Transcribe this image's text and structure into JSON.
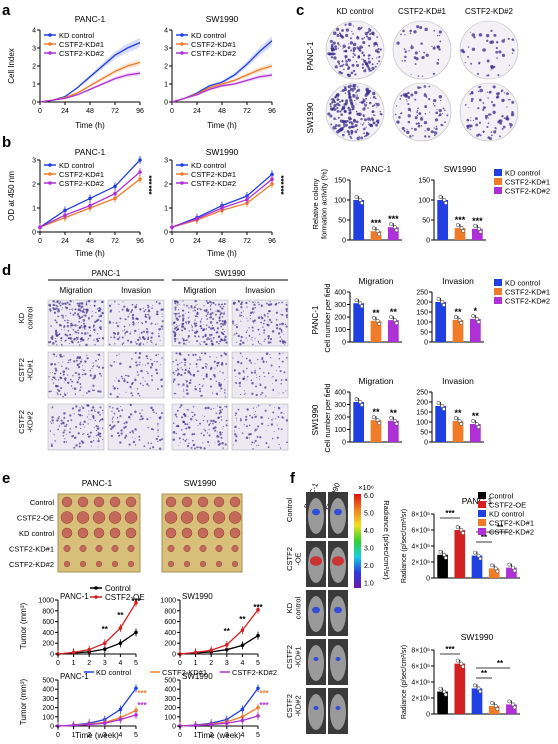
{
  "colors": {
    "blue": "#1f3fe0",
    "orange": "#f07c2a",
    "purple": "#b030d8",
    "black": "#000000",
    "red": "#d42020",
    "plate": "#d8c07a",
    "stain": "#3a2c8a"
  },
  "panel_letters": [
    "a",
    "b",
    "c",
    "d",
    "e",
    "f"
  ],
  "groups": {
    "kd": [
      "KD control",
      "CSTF2-KD#1",
      "CSTF2-KD#2"
    ],
    "oe": [
      "Control",
      "CSTF2-OE"
    ],
    "all": [
      "Control",
      "CSTF2-OE",
      "KD control",
      "CSTF2-KD#1",
      "CSTF2-KD#2"
    ]
  },
  "cells": [
    "PANC-1",
    "SW1990"
  ],
  "panel_a": {
    "ylabel": "Cell Index",
    "xlabel": "Time (h)",
    "xticks": [
      "0",
      "24",
      "48",
      "72",
      "96"
    ],
    "yticks": [
      "0",
      "1",
      "2",
      "3",
      "4"
    ]
  },
  "panel_b": {
    "ylabel": "OD at 450 nm",
    "xlabel": "Time (h)",
    "xticks": [
      "0",
      "24",
      "48",
      "72",
      "96"
    ],
    "yticks": [
      "0",
      "1",
      "2",
      "3"
    ],
    "stars": [
      "***",
      "***"
    ]
  },
  "panel_c": {
    "ylabel": "Relative colony\nformation activity (%)",
    "yticks": [
      "0",
      "50",
      "100",
      "150"
    ],
    "stars": [
      "***",
      "***"
    ]
  },
  "panel_d": {
    "cols": [
      "Migration",
      "Invasion"
    ],
    "rows": [
      "KD\ncontrol",
      "CSTF2\n-KD#1",
      "CSTF2\n-KD#2"
    ],
    "ylabel": "Cell number per field",
    "charts": [
      {
        "title": "Migration",
        "cell": "PANC-1",
        "yticks": [
          "0",
          "100",
          "200",
          "300",
          "400"
        ],
        "stars": [
          "**",
          "**"
        ]
      },
      {
        "title": "Invasion",
        "cell": "PANC-1",
        "yticks": [
          "0",
          "50",
          "100",
          "150",
          "200",
          "250"
        ],
        "stars": [
          "**",
          "*"
        ]
      },
      {
        "title": "Migration",
        "cell": "SW1990",
        "yticks": [
          "0",
          "100",
          "200",
          "300",
          "400"
        ],
        "stars": [
          "**",
          "**"
        ]
      },
      {
        "title": "Invasion",
        "cell": "SW1990",
        "yticks": [
          "0",
          "50",
          "100",
          "150",
          "200",
          "250"
        ],
        "stars": [
          "**",
          "**"
        ]
      }
    ]
  },
  "panel_e": {
    "rows": [
      "Control",
      "CSTF2-OE",
      "KD control",
      "CSTF2-KD#1",
      "CSTF2-KD#2"
    ],
    "ylabel": "Tumor (mm³)",
    "xlabel": "Time (week)",
    "xticks": [
      "0",
      "1",
      "2",
      "3",
      "4",
      "5"
    ],
    "top_yticks": [
      "0",
      "200",
      "400",
      "600",
      "800",
      "1000"
    ],
    "bottom_yticks": [
      "0",
      "100",
      "200",
      "300",
      "400",
      "500"
    ],
    "stars_oe": [
      "**",
      "**",
      "***"
    ],
    "stars_kd": [
      "***",
      "***"
    ]
  },
  "panel_f": {
    "cols": [
      "PANC-1",
      "SW1990"
    ],
    "rows": [
      "Control",
      "CSTF2\n-OE",
      "KD\ncontrol",
      "CSTF2\n-KD#1",
      "CSTF2\n-KD#2"
    ],
    "scale_title": "×10⁶",
    "scale_ticks": [
      "6.0",
      "5.0",
      "4.0",
      "3.0",
      "2.0",
      "1.0"
    ],
    "scale_label": "Radiance (p/sec/cm²/sr)",
    "ylabel": "Radiance (p/sec/cm²/sr)",
    "yticks": [
      "0",
      "2×10⁶",
      "4×10⁶",
      "6×10⁶",
      "8×10⁶"
    ],
    "stars": [
      "***",
      "**",
      "**"
    ]
  },
  "chart_data": [
    {
      "type": "line",
      "panel": "a",
      "title": "PANC-1",
      "xlabel": "Time (h)",
      "ylabel": "Cell Index",
      "xlim": [
        0,
        96
      ],
      "ylim": [
        0,
        4
      ],
      "x": [
        0,
        12,
        24,
        36,
        48,
        60,
        72,
        84,
        96
      ],
      "series": [
        {
          "name": "KD control",
          "values": [
            0,
            0.1,
            0.3,
            0.8,
            1.4,
            2.0,
            2.6,
            3.0,
            3.3
          ]
        },
        {
          "name": "CSTF2-KD#1",
          "values": [
            0,
            0.1,
            0.25,
            0.5,
            0.9,
            1.3,
            1.7,
            2.0,
            2.2
          ]
        },
        {
          "name": "CSTF2-KD#2",
          "values": [
            0,
            0.1,
            0.2,
            0.4,
            0.7,
            1.0,
            1.3,
            1.5,
            1.6
          ]
        }
      ]
    },
    {
      "type": "line",
      "panel": "a",
      "title": "SW1990",
      "xlabel": "Time (h)",
      "ylabel": "",
      "xlim": [
        0,
        96
      ],
      "ylim": [
        0,
        4
      ],
      "x": [
        0,
        12,
        24,
        36,
        48,
        60,
        72,
        84,
        96
      ],
      "series": [
        {
          "name": "KD control",
          "values": [
            0,
            0.2,
            0.5,
            0.9,
            1.1,
            1.5,
            2.1,
            2.8,
            3.4
          ]
        },
        {
          "name": "CSTF2-KD#1",
          "values": [
            0,
            0.2,
            0.45,
            0.8,
            1.0,
            1.2,
            1.5,
            1.8,
            2.0
          ]
        },
        {
          "name": "CSTF2-KD#2",
          "values": [
            0,
            0.2,
            0.4,
            0.7,
            0.9,
            1.0,
            1.2,
            1.4,
            1.5
          ]
        }
      ]
    },
    {
      "type": "line",
      "panel": "b",
      "title": "PANC-1",
      "xlabel": "Time (h)",
      "ylabel": "OD at 450 nm",
      "xlim": [
        0,
        96
      ],
      "ylim": [
        0,
        3
      ],
      "x": [
        0,
        24,
        48,
        72,
        96
      ],
      "series": [
        {
          "name": "KD control",
          "values": [
            0.2,
            0.9,
            1.4,
            1.9,
            3.0
          ]
        },
        {
          "name": "CSTF2-KD#1",
          "values": [
            0.2,
            0.6,
            1.0,
            1.4,
            2.2
          ]
        },
        {
          "name": "CSTF2-KD#2",
          "values": [
            0.2,
            0.7,
            1.1,
            1.6,
            2.5
          ]
        }
      ]
    },
    {
      "type": "line",
      "panel": "b",
      "title": "SW1990",
      "xlabel": "Time (h)",
      "ylabel": "",
      "xlim": [
        0,
        96
      ],
      "ylim": [
        0,
        3
      ],
      "x": [
        0,
        24,
        48,
        72,
        96
      ],
      "series": [
        {
          "name": "KD control",
          "values": [
            0.2,
            0.6,
            1.1,
            1.5,
            2.4
          ]
        },
        {
          "name": "CSTF2-KD#1",
          "values": [
            0.2,
            0.5,
            0.9,
            1.2,
            2.0
          ]
        },
        {
          "name": "CSTF2-KD#2",
          "values": [
            0.2,
            0.55,
            1.0,
            1.35,
            2.2
          ]
        }
      ]
    },
    {
      "type": "bar",
      "panel": "c",
      "title": "PANC-1",
      "ylim": [
        0,
        150
      ],
      "categories": [
        "KD control",
        "CSTF2-KD#1",
        "CSTF2-KD#2"
      ],
      "values": [
        100,
        22,
        32
      ]
    },
    {
      "type": "bar",
      "panel": "c",
      "title": "SW1990",
      "ylim": [
        0,
        150
      ],
      "categories": [
        "KD control",
        "CSTF2-KD#1",
        "CSTF2-KD#2"
      ],
      "values": [
        100,
        30,
        28
      ]
    },
    {
      "type": "bar",
      "panel": "d",
      "title": "Migration",
      "cell": "PANC-1",
      "ylim": [
        0,
        400
      ],
      "categories": [
        "KD control",
        "CSTF2-KD#1",
        "CSTF2-KD#2"
      ],
      "values": [
        310,
        170,
        175
      ]
    },
    {
      "type": "bar",
      "panel": "d",
      "title": "Invasion",
      "cell": "PANC-1",
      "ylim": [
        0,
        250
      ],
      "categories": [
        "KD control",
        "CSTF2-KD#1",
        "CSTF2-KD#2"
      ],
      "values": [
        200,
        110,
        115
      ]
    },
    {
      "type": "bar",
      "panel": "d",
      "title": "Migration",
      "cell": "SW1990",
      "ylim": [
        0,
        400
      ],
      "categories": [
        "KD control",
        "CSTF2-KD#1",
        "CSTF2-KD#2"
      ],
      "values": [
        320,
        175,
        170
      ]
    },
    {
      "type": "bar",
      "panel": "d",
      "title": "Invasion",
      "cell": "SW1990",
      "ylim": [
        0,
        250
      ],
      "categories": [
        "KD control",
        "CSTF2-KD#1",
        "CSTF2-KD#2"
      ],
      "values": [
        180,
        105,
        90
      ]
    },
    {
      "type": "line",
      "panel": "e",
      "title": "PANC-1",
      "xlim": [
        0,
        5
      ],
      "ylim": [
        0,
        1000
      ],
      "x": [
        0,
        1,
        2,
        3,
        4,
        5
      ],
      "series": [
        {
          "name": "Control",
          "values": [
            0,
            20,
            40,
            90,
            200,
            400
          ]
        },
        {
          "name": "CSTF2-OE",
          "values": [
            0,
            30,
            80,
            200,
            480,
            950
          ]
        }
      ]
    },
    {
      "type": "line",
      "panel": "e",
      "title": "SW1990",
      "xlim": [
        0,
        5
      ],
      "ylim": [
        0,
        1000
      ],
      "x": [
        0,
        1,
        2,
        3,
        4,
        5
      ],
      "series": [
        {
          "name": "Control",
          "values": [
            0,
            20,
            40,
            80,
            160,
            340
          ]
        },
        {
          "name": "CSTF2-OE",
          "values": [
            0,
            30,
            70,
            170,
            440,
            820
          ]
        }
      ]
    },
    {
      "type": "line",
      "panel": "e",
      "title": "PANC-1",
      "xlim": [
        0,
        5
      ],
      "ylim": [
        0,
        500
      ],
      "x": [
        0,
        1,
        2,
        3,
        4,
        5
      ],
      "series": [
        {
          "name": "KD control",
          "values": [
            0,
            10,
            30,
            70,
            180,
            410
          ]
        },
        {
          "name": "CSTF2-KD#1",
          "values": [
            0,
            8,
            20,
            40,
            90,
            170
          ]
        },
        {
          "name": "CSTF2-KD#2",
          "values": [
            0,
            6,
            15,
            30,
            70,
            120
          ]
        }
      ]
    },
    {
      "type": "line",
      "panel": "e",
      "title": "SW1990",
      "xlim": [
        0,
        5
      ],
      "ylim": [
        0,
        500
      ],
      "x": [
        0,
        1,
        2,
        3,
        4,
        5
      ],
      "series": [
        {
          "name": "KD control",
          "values": [
            0,
            10,
            30,
            70,
            180,
            410
          ]
        },
        {
          "name": "CSTF2-KD#1",
          "values": [
            0,
            8,
            20,
            45,
            100,
            200
          ]
        },
        {
          "name": "CSTF2-KD#2",
          "values": [
            0,
            6,
            15,
            30,
            60,
            110
          ]
        }
      ]
    },
    {
      "type": "bar",
      "panel": "f",
      "title": "PANC-1",
      "ylim": [
        0,
        8000000
      ],
      "categories": [
        "Control",
        "CSTF2-OE",
        "KD control",
        "CSTF2-KD#1",
        "CSTF2-KD#2"
      ],
      "values": [
        2900000,
        6000000,
        2800000,
        1200000,
        1300000
      ]
    },
    {
      "type": "bar",
      "panel": "f",
      "title": "SW1990",
      "ylim": [
        0,
        8000000
      ],
      "categories": [
        "Control",
        "CSTF2-OE",
        "KD control",
        "CSTF2-KD#1",
        "CSTF2-KD#2"
      ],
      "values": [
        2800000,
        6300000,
        3200000,
        1000000,
        1200000
      ]
    }
  ]
}
